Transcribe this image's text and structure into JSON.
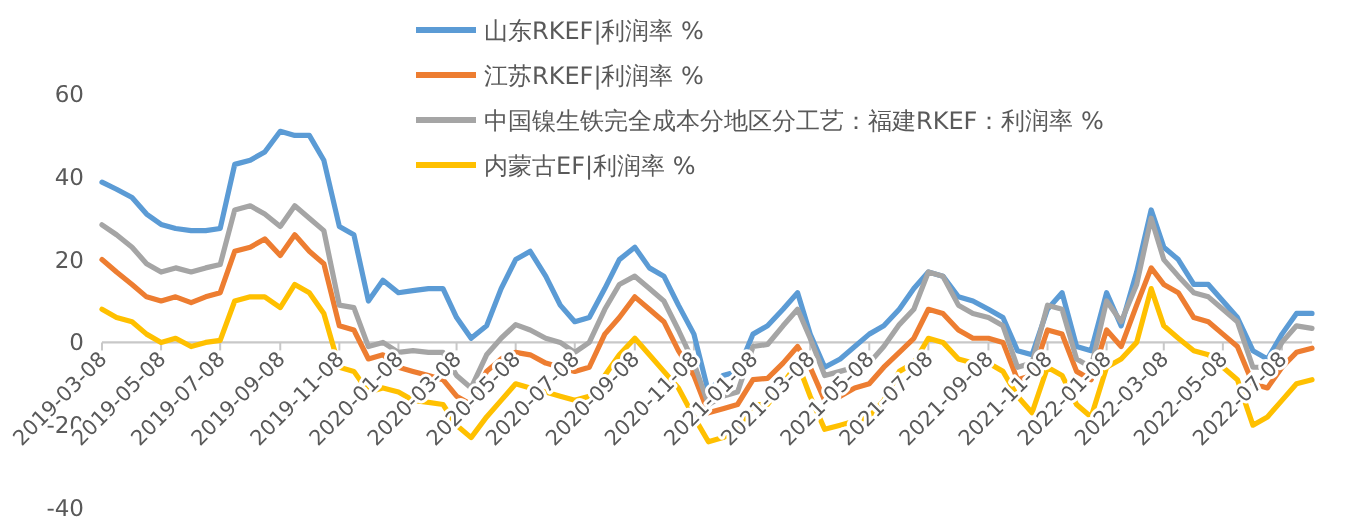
{
  "chart_data": {
    "type": "line",
    "legend": "top",
    "grid": false,
    "line_style": "solid",
    "marker": "none",
    "x": [
      "2019-03-08",
      "2019-03-23",
      "2019-04-08",
      "2019-04-23",
      "2019-05-08",
      "2019-05-23",
      "2019-06-08",
      "2019-06-23",
      "2019-07-08",
      "2019-07-23",
      "2019-08-08",
      "2019-08-23",
      "2019-09-08",
      "2019-09-23",
      "2019-10-08",
      "2019-10-23",
      "2019-11-08",
      "2019-11-23",
      "2019-12-08",
      "2019-12-23",
      "2020-01-08",
      "2020-01-23",
      "2020-02-08",
      "2020-02-23",
      "2020-03-08",
      "2020-03-23",
      "2020-04-08",
      "2020-04-23",
      "2020-05-08",
      "2020-05-23",
      "2020-06-08",
      "2020-06-23",
      "2020-07-08",
      "2020-07-23",
      "2020-08-08",
      "2020-08-23",
      "2020-09-08",
      "2020-09-23",
      "2020-10-08",
      "2020-10-23",
      "2020-11-08",
      "2020-11-23",
      "2020-12-08",
      "2020-12-23",
      "2021-01-08",
      "2021-01-23",
      "2021-02-08",
      "2021-02-23",
      "2021-03-08",
      "2021-03-23",
      "2021-04-08",
      "2021-04-23",
      "2021-05-08",
      "2021-05-23",
      "2021-06-08",
      "2021-06-23",
      "2021-07-08",
      "2021-07-23",
      "2021-08-08",
      "2021-08-23",
      "2021-09-08",
      "2021-09-23",
      "2021-10-08",
      "2021-10-23",
      "2021-11-08",
      "2021-11-23",
      "2021-12-08",
      "2021-12-23",
      "2022-01-08",
      "2022-01-23",
      "2022-02-08",
      "2022-02-23",
      "2022-03-08",
      "2022-03-23",
      "2022-04-08",
      "2022-04-23",
      "2022-05-08",
      "2022-05-23",
      "2022-06-08",
      "2022-06-23",
      "2022-07-08",
      "2022-07-23",
      "2022-08-08"
    ],
    "xlim": [
      "2019-03-08",
      "2022-08-08"
    ],
    "xticks": [
      "2019-03-08",
      "2019-05-08",
      "2019-07-08",
      "2019-09-08",
      "2019-11-08",
      "2020-01-08",
      "2020-03-08",
      "2020-05-08",
      "2020-07-08",
      "2020-09-08",
      "2020-11-08",
      "2021-01-08",
      "2021-03-08",
      "2021-05-08",
      "2021-07-08",
      "2021-09-08",
      "2021-11-08",
      "2022-01-08",
      "2022-03-08",
      "2022-05-08",
      "2022-07-08"
    ],
    "ylim": [
      -40,
      60
    ],
    "yticks": [
      -40,
      -20,
      0,
      20,
      40,
      60
    ],
    "series": [
      {
        "name": "山东RKEF|利润率 %",
        "color": "#5b9bd5",
        "values": [
          38.7,
          37,
          35,
          31,
          28.5,
          27.5,
          27,
          27,
          27.5,
          43,
          44,
          46,
          51,
          50,
          50,
          44,
          28,
          26,
          10,
          15,
          12,
          12.5,
          13,
          13,
          6,
          1,
          4,
          13,
          20,
          22,
          16,
          9,
          5,
          6,
          13,
          20,
          23,
          18,
          16,
          9,
          2,
          -12,
          -8,
          -7,
          2,
          4,
          8,
          12,
          2,
          -6,
          -4,
          -1,
          2,
          4,
          8,
          13,
          17,
          16,
          11,
          10,
          8,
          6,
          -2,
          -3,
          8,
          12,
          -1,
          -2,
          12,
          4,
          17,
          32,
          23,
          20,
          14,
          14,
          10,
          6,
          -2,
          -4,
          2,
          7,
          7
        ]
      },
      {
        "name": "江苏RKEF|利润率 %",
        "color": "#ed7d31",
        "values": [
          20,
          17,
          14,
          11,
          10,
          11,
          9.6,
          11,
          12,
          22,
          23,
          25,
          21,
          26,
          22,
          19,
          4,
          3,
          -4,
          -3,
          -6,
          -7,
          -8,
          -9,
          -13,
          -15,
          -7,
          -4,
          -2.4,
          -3,
          -5,
          -6,
          -7,
          -6,
          2,
          6,
          11,
          8,
          5,
          -2,
          -8,
          -17,
          -16,
          -15,
          -9,
          -8.7,
          -5,
          -1,
          -6,
          -14,
          -13,
          -11,
          -10,
          -6,
          -2.4,
          1,
          8,
          7,
          3,
          1,
          1,
          0,
          -9,
          -8,
          3,
          2,
          -7,
          -9,
          3,
          -1,
          9,
          18,
          14,
          12,
          6,
          5,
          2,
          -1,
          -10,
          -11,
          -6,
          -2.4,
          -1.4
        ]
      },
      {
        "name": "中国镍生铁完全成本分地区分工艺：福建RKEF：利润率 %",
        "color": "#a5a5a5",
        "values": [
          28.4,
          26,
          23,
          19,
          17,
          18,
          17,
          18,
          18.8,
          32,
          33,
          31,
          28,
          33,
          30,
          27,
          9,
          8.4,
          -1,
          0,
          -2.4,
          -2,
          -2.4,
          -2.4,
          -8,
          -11,
          -3,
          1,
          4.3,
          3,
          1,
          0,
          -2.4,
          0,
          8,
          14,
          16,
          13,
          10,
          3,
          -5,
          -15,
          -13,
          -12,
          -1,
          -0.5,
          4,
          8,
          1,
          -8,
          -7,
          -6,
          -5,
          -1,
          4.3,
          8,
          17,
          16,
          9,
          7,
          6,
          4,
          -6,
          -5,
          9,
          8,
          -4,
          -6,
          10,
          5,
          14,
          30,
          20,
          16,
          12,
          11,
          8,
          5,
          -6,
          -6,
          0,
          4,
          3.4
        ]
      },
      {
        "name": "内蒙古EF|利润率 %",
        "color": "#ffc000",
        "values": [
          8,
          6,
          5,
          2,
          0,
          1,
          -1,
          0,
          0.5,
          10,
          11,
          11,
          8.4,
          14,
          12,
          7,
          -6,
          -7,
          -12,
          -11,
          -12,
          -14,
          -14.5,
          -15,
          -20,
          -23,
          -18,
          -14,
          -10,
          -11,
          -12,
          -13,
          -14,
          -13,
          -8,
          -3,
          1,
          -3,
          -7,
          -11,
          -18,
          -24,
          -23,
          -21,
          -15,
          -15,
          -10,
          -5,
          -13,
          -21,
          -20,
          -19,
          -18,
          -14,
          -7,
          -5,
          1,
          0,
          -4,
          -5,
          -5,
          -7,
          -13,
          -17,
          -6,
          -8,
          -15,
          -18,
          -6,
          -4,
          0,
          13,
          4,
          1,
          -2,
          -3,
          -6,
          -9,
          -20,
          -18,
          -14,
          -10,
          -9
        ]
      }
    ]
  }
}
